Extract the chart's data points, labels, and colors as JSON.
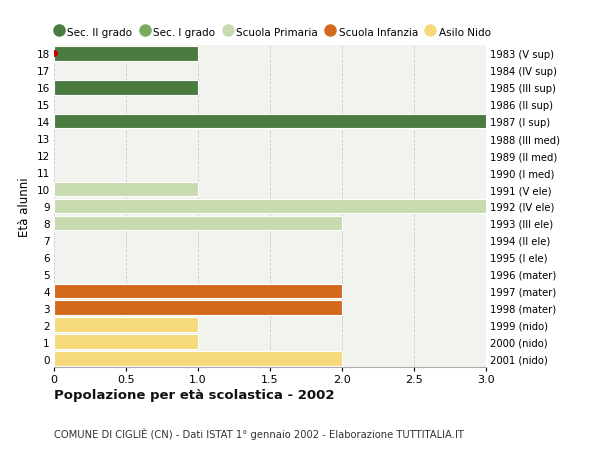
{
  "ages": [
    18,
    17,
    16,
    15,
    14,
    13,
    12,
    11,
    10,
    9,
    8,
    7,
    6,
    5,
    4,
    3,
    2,
    1,
    0
  ],
  "right_labels": [
    "1983 (V sup)",
    "1984 (IV sup)",
    "1985 (III sup)",
    "1986 (II sup)",
    "1987 (I sup)",
    "1988 (III med)",
    "1989 (II med)",
    "1990 (I med)",
    "1991 (V ele)",
    "1992 (IV ele)",
    "1993 (III ele)",
    "1994 (II ele)",
    "1995 (I ele)",
    "1996 (mater)",
    "1997 (mater)",
    "1998 (mater)",
    "1999 (nido)",
    "2000 (nido)",
    "2001 (nido)"
  ],
  "bars": [
    {
      "age": 18,
      "value": 1,
      "color": "#4a7c3f"
    },
    {
      "age": 17,
      "value": 0,
      "color": "#4a7c3f"
    },
    {
      "age": 16,
      "value": 1,
      "color": "#4a7c3f"
    },
    {
      "age": 15,
      "value": 0,
      "color": "#4a7c3f"
    },
    {
      "age": 14,
      "value": 3,
      "color": "#4a7c3f"
    },
    {
      "age": 13,
      "value": 0,
      "color": "#7aab5e"
    },
    {
      "age": 12,
      "value": 0,
      "color": "#7aab5e"
    },
    {
      "age": 11,
      "value": 0,
      "color": "#7aab5e"
    },
    {
      "age": 10,
      "value": 1,
      "color": "#c8dbb0"
    },
    {
      "age": 9,
      "value": 3,
      "color": "#c8dbb0"
    },
    {
      "age": 8,
      "value": 2,
      "color": "#c8dbb0"
    },
    {
      "age": 7,
      "value": 0,
      "color": "#c8dbb0"
    },
    {
      "age": 6,
      "value": 0,
      "color": "#c8dbb0"
    },
    {
      "age": 5,
      "value": 0,
      "color": "#d4691e"
    },
    {
      "age": 4,
      "value": 2,
      "color": "#d4691e"
    },
    {
      "age": 3,
      "value": 2,
      "color": "#d4691e"
    },
    {
      "age": 2,
      "value": 1,
      "color": "#f5d97a"
    },
    {
      "age": 1,
      "value": 1,
      "color": "#f5d97a"
    },
    {
      "age": 0,
      "value": 2,
      "color": "#f5d97a"
    }
  ],
  "legend": [
    {
      "label": "Sec. II grado",
      "color": "#4a7c3f"
    },
    {
      "label": "Sec. I grado",
      "color": "#7aab5e"
    },
    {
      "label": "Scuola Primaria",
      "color": "#c8dbb0"
    },
    {
      "label": "Scuola Infanzia",
      "color": "#d4691e"
    },
    {
      "label": "Asilo Nido",
      "color": "#f5d97a"
    }
  ],
  "ylabel_left": "Età alunni",
  "xlim": [
    0,
    3.0
  ],
  "xticks": [
    0,
    0.5,
    1.0,
    1.5,
    2.0,
    2.5,
    3.0
  ],
  "xtick_labels": [
    "0",
    "0.5",
    "1.0",
    "1.5",
    "2.0",
    "2.5",
    "3.0"
  ],
  "title": "Popolazione per età scolastica - 2002",
  "subtitle": "COMUNE DI CIGLIÈ (CN) - Dati ISTAT 1° gennaio 2002 - Elaborazione TUTTITALIA.IT",
  "background_color": "#ffffff",
  "plot_background": "#f2f2ee",
  "grid_color": "#cccccc",
  "bar_height": 0.85,
  "red_dot_age": 18
}
